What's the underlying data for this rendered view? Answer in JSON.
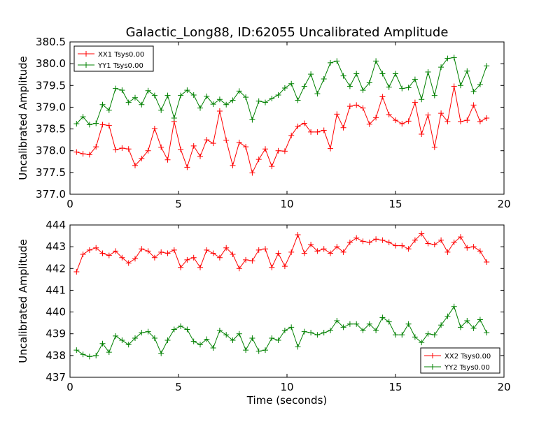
{
  "figure_title": "Galactic_Long88, ID:62055 Uncalibrated Amplitude",
  "chart_data": [
    {
      "type": "line",
      "ylabel": "Uncalibrated Amplitude",
      "xlabel": "",
      "xlim": [
        0,
        20
      ],
      "ylim": [
        377.0,
        380.5
      ],
      "xticks": [
        "0",
        "5",
        "10",
        "15",
        "20"
      ],
      "yticks": [
        "377.0",
        "377.5",
        "378.0",
        "378.5",
        "379.0",
        "379.5",
        "380.0",
        "380.5"
      ],
      "legend_position": "upper-left",
      "x": [
        0.3,
        0.6,
        0.9,
        1.2,
        1.5,
        1.8,
        2.1,
        2.4,
        2.7,
        3.0,
        3.3,
        3.6,
        3.9,
        4.2,
        4.5,
        4.8,
        5.1,
        5.4,
        5.7,
        6.0,
        6.3,
        6.6,
        6.9,
        7.2,
        7.5,
        7.8,
        8.1,
        8.4,
        8.7,
        9.0,
        9.3,
        9.6,
        9.9,
        10.2,
        10.5,
        10.8,
        11.1,
        11.4,
        11.7,
        12.0,
        12.3,
        12.6,
        12.9,
        13.2,
        13.5,
        13.8,
        14.1,
        14.4,
        14.7,
        15.0,
        15.3,
        15.6,
        15.9,
        16.2,
        16.5,
        16.8,
        17.1,
        17.4,
        17.7,
        18.0,
        18.3,
        18.6,
        18.9,
        19.2
      ],
      "series": [
        {
          "name": "XX1 Tsys0.00",
          "color": "#ff0000",
          "values": [
            377.97,
            377.93,
            377.91,
            378.09,
            378.6,
            378.58,
            378.02,
            378.06,
            378.04,
            377.66,
            377.82,
            378.0,
            378.51,
            378.08,
            377.79,
            378.67,
            378.03,
            377.62,
            378.11,
            377.87,
            378.25,
            378.17,
            378.91,
            378.24,
            377.66,
            378.19,
            378.09,
            377.49,
            377.8,
            378.04,
            377.64,
            378.0,
            377.99,
            378.35,
            378.56,
            378.63,
            378.43,
            378.43,
            378.47,
            378.05,
            378.84,
            378.53,
            379.02,
            379.05,
            378.98,
            378.61,
            378.76,
            379.24,
            378.83,
            378.7,
            378.62,
            378.68,
            379.11,
            378.38,
            378.82,
            378.08,
            378.86,
            378.67,
            379.48,
            378.67,
            378.7,
            379.05,
            378.67,
            378.75
          ]
        },
        {
          "name": "YY1 Tsys0.00",
          "color": "#008000",
          "values": [
            378.62,
            378.78,
            378.6,
            378.63,
            379.06,
            378.93,
            379.43,
            379.39,
            379.11,
            379.22,
            379.06,
            379.38,
            379.27,
            378.93,
            379.27,
            378.75,
            379.27,
            379.39,
            379.28,
            378.98,
            379.25,
            379.07,
            379.18,
            379.06,
            379.16,
            379.37,
            379.23,
            378.71,
            379.14,
            379.11,
            379.2,
            379.28,
            379.44,
            379.54,
            379.16,
            379.48,
            379.76,
            379.31,
            379.65,
            380.02,
            380.06,
            379.72,
            379.48,
            379.77,
            379.39,
            379.56,
            380.06,
            379.77,
            379.46,
            379.77,
            379.43,
            379.45,
            379.64,
            379.18,
            379.81,
            379.27,
            379.92,
            380.12,
            380.14,
            379.5,
            379.83,
            379.36,
            379.52,
            379.95
          ]
        }
      ]
    },
    {
      "type": "line",
      "ylabel": "Uncalibrated Amplitude",
      "xlabel": "Time (seconds)",
      "xlim": [
        0,
        20
      ],
      "ylim": [
        437,
        444
      ],
      "xticks": [
        "0",
        "5",
        "10",
        "15",
        "20"
      ],
      "yticks": [
        "437",
        "438",
        "439",
        "440",
        "441",
        "442",
        "443",
        "444"
      ],
      "legend_position": "lower-right",
      "x": [
        0.3,
        0.6,
        0.9,
        1.2,
        1.5,
        1.8,
        2.1,
        2.4,
        2.7,
        3.0,
        3.3,
        3.6,
        3.9,
        4.2,
        4.5,
        4.8,
        5.1,
        5.4,
        5.7,
        6.0,
        6.3,
        6.6,
        6.9,
        7.2,
        7.5,
        7.8,
        8.1,
        8.4,
        8.7,
        9.0,
        9.3,
        9.6,
        9.9,
        10.2,
        10.5,
        10.8,
        11.1,
        11.4,
        11.7,
        12.0,
        12.3,
        12.6,
        12.9,
        13.2,
        13.5,
        13.8,
        14.1,
        14.4,
        14.7,
        15.0,
        15.3,
        15.6,
        15.9,
        16.2,
        16.5,
        16.8,
        17.1,
        17.4,
        17.7,
        18.0,
        18.3,
        18.6,
        18.9,
        19.2
      ],
      "series": [
        {
          "name": "XX2 Tsys0.00",
          "color": "#ff0000",
          "values": [
            441.85,
            442.65,
            442.85,
            442.95,
            442.7,
            442.6,
            442.8,
            442.5,
            442.25,
            442.45,
            442.9,
            442.8,
            442.5,
            442.75,
            442.7,
            442.85,
            442.05,
            442.4,
            442.5,
            442.05,
            442.85,
            442.7,
            442.5,
            442.95,
            442.65,
            442.0,
            442.4,
            442.35,
            442.85,
            442.9,
            442.05,
            442.7,
            442.1,
            442.75,
            443.55,
            442.7,
            443.1,
            442.8,
            442.9,
            442.7,
            443.0,
            442.75,
            443.2,
            443.4,
            443.25,
            443.2,
            443.35,
            443.3,
            443.2,
            443.05,
            443.05,
            442.9,
            443.3,
            443.6,
            443.15,
            443.1,
            443.3,
            442.75,
            443.2,
            443.45,
            442.95,
            443.0,
            442.8,
            442.3
          ]
        },
        {
          "name": "YY2 Tsys0.00",
          "color": "#008000",
          "values": [
            438.25,
            438.05,
            437.95,
            438.0,
            438.55,
            438.15,
            438.9,
            438.7,
            438.5,
            438.8,
            439.05,
            439.1,
            438.8,
            438.1,
            438.7,
            439.2,
            439.35,
            439.2,
            438.65,
            438.5,
            438.75,
            438.35,
            439.15,
            438.95,
            438.7,
            439.0,
            438.25,
            438.8,
            438.2,
            438.25,
            438.8,
            438.7,
            439.15,
            439.3,
            438.4,
            439.1,
            439.05,
            438.95,
            439.05,
            439.15,
            439.6,
            439.3,
            439.45,
            439.45,
            439.15,
            439.45,
            439.15,
            439.75,
            439.55,
            438.95,
            438.95,
            439.45,
            438.85,
            438.6,
            439.0,
            438.95,
            439.4,
            439.8,
            440.25,
            439.3,
            439.6,
            439.25,
            439.65,
            439.05
          ]
        }
      ]
    }
  ]
}
